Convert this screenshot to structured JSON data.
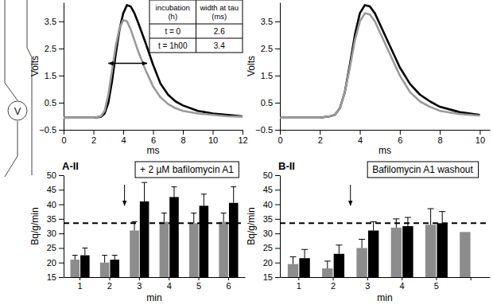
{
  "diagram": {
    "meter_label": "V"
  },
  "chart_data": [
    {
      "type": "line",
      "x": [
        0,
        1,
        2,
        2.5,
        2.75,
        3,
        3.25,
        3.5,
        3.75,
        4,
        4.25,
        4.5,
        4.75,
        5,
        5.5,
        6,
        6.5,
        7,
        7.5,
        8,
        9,
        10,
        11,
        12
      ],
      "series": [
        {
          "color": "#000000",
          "values": [
            -0.05,
            -0.05,
            -0.05,
            -0.02,
            0.1,
            0.5,
            1.3,
            2.3,
            3.2,
            3.8,
            4.1,
            4.05,
            3.8,
            3.45,
            2.7,
            1.9,
            1.2,
            0.8,
            0.55,
            0.4,
            0.2,
            0.1,
            0.05,
            0
          ]
        },
        {
          "color": "#9a9a9a",
          "values": [
            -0.05,
            -0.05,
            -0.05,
            0,
            0.2,
            0.8,
            1.7,
            2.6,
            3.25,
            3.55,
            3.5,
            3.2,
            2.8,
            2.4,
            1.7,
            1.1,
            0.7,
            0.45,
            0.3,
            0.2,
            0.1,
            0.05,
            0,
            -0.02
          ]
        }
      ],
      "xlim": [
        0,
        12
      ],
      "xticks": [
        0,
        2,
        4,
        6,
        8,
        10,
        12
      ],
      "ylim": [
        -0.5,
        4.2
      ],
      "yticks": [
        {
          "value": -0.5,
          "label": "−0.5"
        },
        0.5,
        1.5,
        2.5,
        3.5
      ],
      "x_label": "ms",
      "y_label": "Volts",
      "table": {
        "header": [
          "incubation (h)",
          "width at tau (ms)"
        ],
        "rows": [
          [
            "t = 0",
            2.6
          ],
          [
            "t = 1h00",
            3.4
          ]
        ]
      },
      "width_arrow": {
        "x": [
          3.0,
          5.6
        ],
        "y": 1.95
      }
    },
    {
      "type": "line",
      "x": [
        0,
        1,
        2,
        2.5,
        2.75,
        3,
        3.25,
        3.5,
        3.75,
        4,
        4.25,
        4.5,
        4.75,
        5,
        5.5,
        6,
        6.5,
        7,
        7.5,
        8,
        9,
        10
      ],
      "series": [
        {
          "color": "#000000",
          "values": [
            -0.05,
            -0.05,
            -0.05,
            0,
            0.05,
            0.3,
            0.9,
            1.9,
            3.0,
            3.8,
            4.1,
            4.05,
            3.8,
            3.4,
            2.6,
            1.8,
            1.2,
            0.8,
            0.55,
            0.35,
            0.15,
            0.05
          ]
        },
        {
          "color": "#9a9a9a",
          "values": [
            -0.05,
            -0.05,
            -0.05,
            0,
            0.05,
            0.3,
            0.9,
            1.8,
            2.8,
            3.5,
            3.8,
            3.75,
            3.5,
            3.1,
            2.3,
            1.5,
            0.9,
            0.55,
            0.35,
            0.2,
            0.08,
            0.02
          ]
        }
      ],
      "xlim": [
        0,
        10.5
      ],
      "xticks": [
        0,
        2,
        4,
        6,
        8,
        10
      ],
      "ylim": [
        -0.5,
        4.2
      ],
      "yticks": [
        {
          "value": -0.5,
          "label": "−0.5"
        },
        0.5,
        1.5,
        2.5,
        3.5
      ],
      "x_label": "ms",
      "y_label": "Volts"
    },
    {
      "type": "bar",
      "panel": "A-II",
      "annotation": "+ 2 µM bafilomycin A1",
      "categories": [
        "1",
        "2",
        "3",
        "4",
        "5",
        "6"
      ],
      "series": [
        {
          "color": "#8c8c8c",
          "values": [
            21,
            20,
            31,
            34,
            33.5,
            34
          ],
          "errors": [
            1.5,
            2.5,
            3,
            3,
            3.5,
            3
          ]
        },
        {
          "color": "#000000",
          "values": [
            22.5,
            21,
            41,
            42.5,
            39.5,
            40.5
          ],
          "errors": [
            2.5,
            1.5,
            6.5,
            3.5,
            4,
            5.5
          ]
        }
      ],
      "ylim": [
        15,
        50
      ],
      "yticks": [
        15,
        20,
        25,
        30,
        35,
        40,
        45,
        50
      ],
      "reference_line": 33.5,
      "x_label": "min",
      "y_label": "Bq/g/min"
    },
    {
      "type": "bar",
      "panel": "B-II",
      "annotation": "Bafilomycin A1 washout",
      "categories": [
        "1",
        "2",
        "3",
        "4",
        "5",
        null
      ],
      "series": [
        {
          "color": "#8c8c8c",
          "values": [
            19.5,
            18,
            25,
            32,
            33,
            30.5
          ],
          "errors": [
            2.5,
            2.5,
            3,
            3,
            5.5,
            null
          ]
        },
        {
          "color": "#000000",
          "values": [
            21.5,
            23,
            31,
            32.5,
            33.5,
            null
          ],
          "errors": [
            3,
            3,
            3,
            3,
            4,
            null
          ]
        }
      ],
      "ylim": [
        15,
        50
      ],
      "yticks": [
        15,
        20,
        25,
        30,
        35,
        40,
        45,
        50
      ],
      "reference_line": 33.5,
      "x_label": "min",
      "y_label": "Bq/g/min"
    }
  ]
}
